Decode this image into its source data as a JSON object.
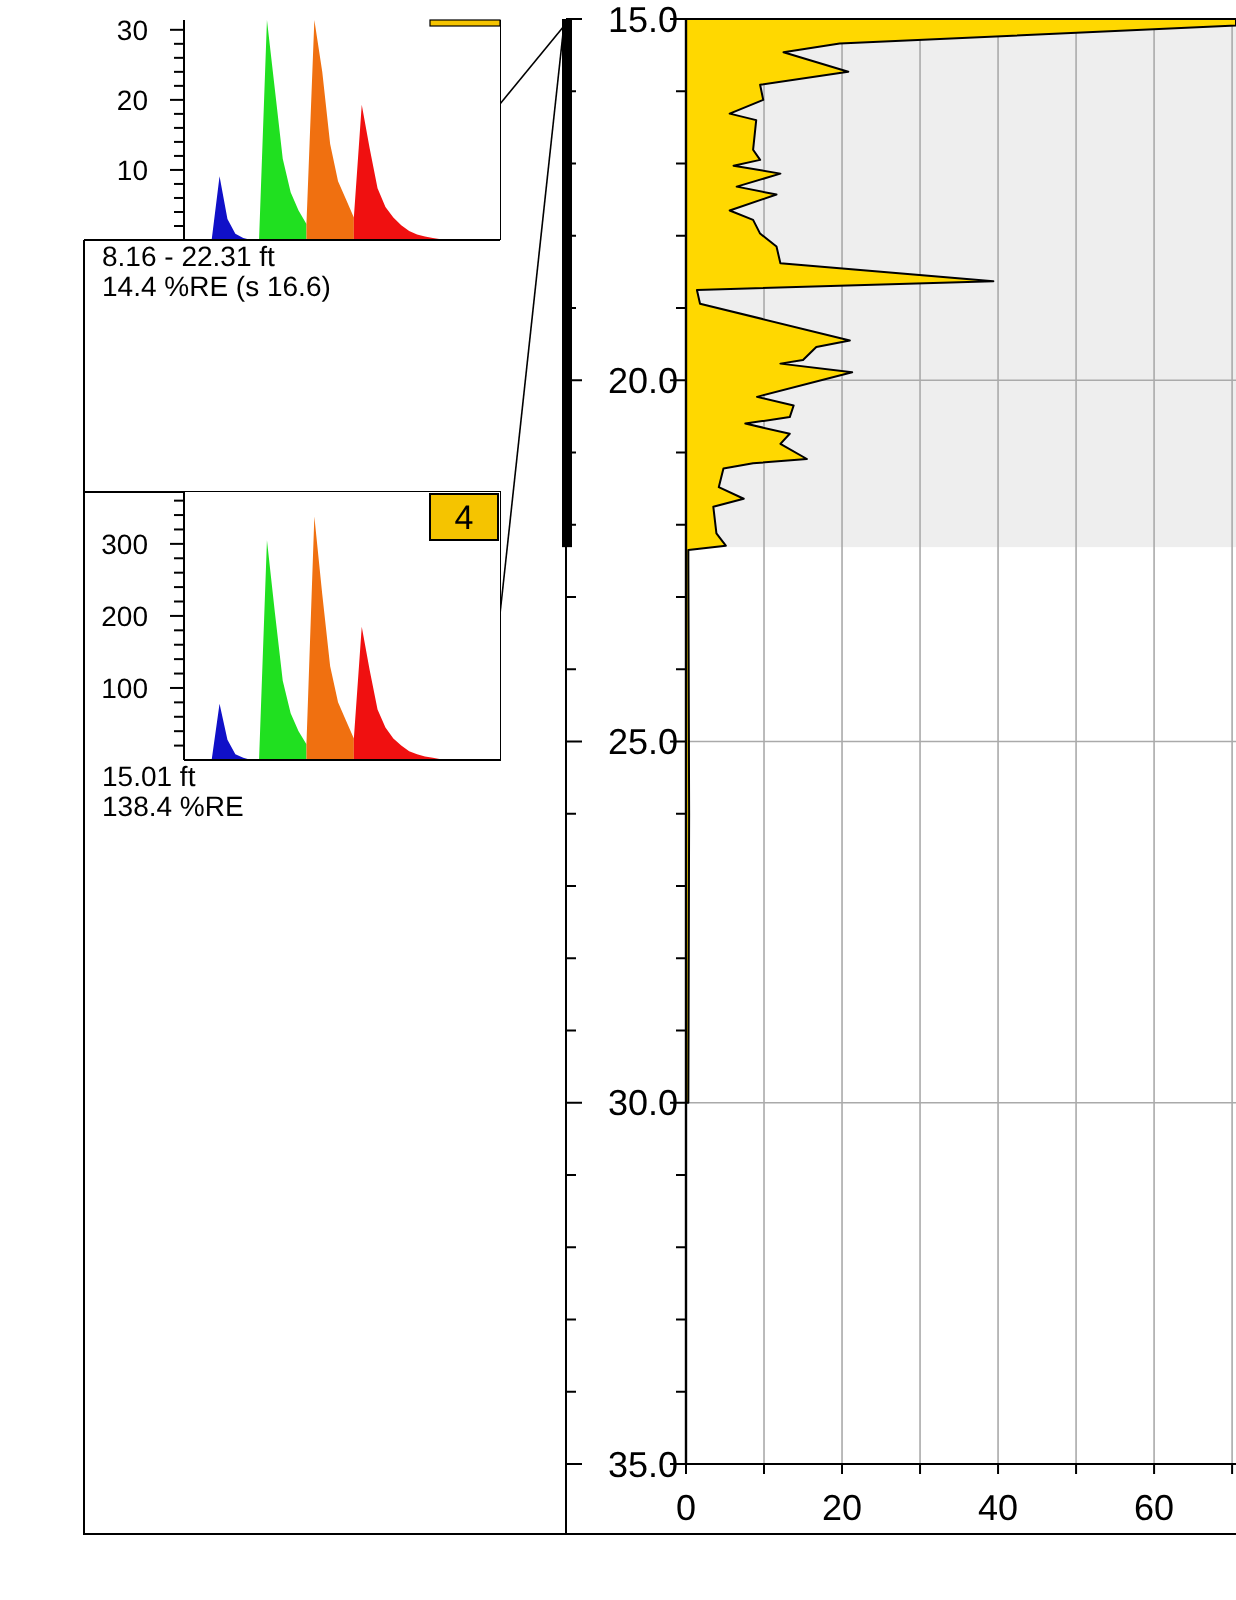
{
  "chart_data": [
    {
      "type": "area",
      "categories": [
        null,
        null,
        null,
        null,
        null,
        null,
        null,
        null,
        null,
        null,
        null,
        null,
        null,
        null,
        null,
        null,
        null,
        null,
        null,
        null,
        null,
        null,
        null,
        null,
        null,
        null,
        null,
        null,
        null,
        null,
        null,
        null,
        null,
        null,
        null,
        null,
        null,
        null,
        null,
        null
      ],
      "ylim": [
        0,
        31.4
      ],
      "tick_labels": "y",
      "yticks": [
        {
          "value": 2,
          "label": null
        },
        {
          "value": 4,
          "label": null
        },
        {
          "value": 6,
          "label": null
        },
        {
          "value": 8,
          "label": null
        },
        10,
        {
          "value": 12,
          "label": null
        },
        {
          "value": 14,
          "label": null
        },
        {
          "value": 16,
          "label": null
        },
        {
          "value": 18,
          "label": null
        },
        20,
        {
          "value": 22,
          "label": null
        },
        {
          "value": 24,
          "label": null
        },
        {
          "value": 26,
          "label": null
        },
        {
          "value": 28,
          "label": null
        },
        30
      ],
      "series": [
        {
          "color": "#1010c8",
          "values": [
            null,
            null,
            null,
            0,
            9.1,
            3,
            0.9,
            0.3,
            0,
            null,
            null,
            null,
            null,
            null,
            null,
            null,
            null,
            null,
            null,
            null,
            null,
            null,
            null,
            null,
            null,
            null,
            null,
            null,
            null,
            null,
            null,
            null,
            null,
            null,
            null,
            null,
            null,
            null,
            null,
            null
          ]
        },
        {
          "color": "#20e020",
          "values": [
            null,
            null,
            null,
            null,
            null,
            null,
            null,
            null,
            null,
            0,
            31.4,
            21.5,
            11.6,
            6.8,
            4.2,
            2.3,
            null,
            null,
            null,
            null,
            null,
            null,
            null,
            null,
            null,
            null,
            null,
            null,
            null,
            null,
            null,
            null,
            null,
            null,
            null,
            null,
            null,
            null,
            null,
            null
          ]
        },
        {
          "color": "#f07010",
          "values": [
            null,
            null,
            null,
            null,
            null,
            null,
            null,
            null,
            null,
            null,
            null,
            null,
            null,
            null,
            null,
            2.3,
            31.4,
            24,
            13.7,
            8.4,
            5.8,
            3.2,
            null,
            null,
            null,
            null,
            null,
            null,
            null,
            null,
            null,
            null,
            null,
            null,
            null,
            null,
            null,
            null,
            null,
            null
          ]
        },
        {
          "color": "#f01010",
          "values": [
            null,
            null,
            null,
            null,
            null,
            null,
            null,
            null,
            null,
            null,
            null,
            null,
            null,
            null,
            null,
            null,
            null,
            null,
            null,
            null,
            null,
            3.2,
            19.3,
            13.1,
            7.4,
            4.7,
            3.2,
            2.1,
            1.3,
            0.8,
            0.5,
            0.3,
            0.1,
            0.1,
            0,
            0,
            0,
            0,
            0,
            0
          ]
        }
      ],
      "annotations": [
        "8.16 - 22.31 ft",
        "14.4 %RE (s 16.6)"
      ]
    },
    {
      "type": "area",
      "title": "4",
      "categories": [
        null,
        null,
        null,
        null,
        null,
        null,
        null,
        null,
        null,
        null,
        null,
        null,
        null,
        null,
        null,
        null,
        null,
        null,
        null,
        null,
        null,
        null,
        null,
        null,
        null,
        null,
        null,
        null,
        null,
        null,
        null,
        null,
        null,
        null,
        null,
        null,
        null,
        null,
        null,
        null
      ],
      "ylim": [
        0,
        372
      ],
      "tick_labels": "y",
      "yticks": [
        {
          "value": 20,
          "label": null
        },
        {
          "value": 40,
          "label": null
        },
        {
          "value": 60,
          "label": null
        },
        {
          "value": 80,
          "label": null
        },
        100,
        {
          "value": 120,
          "label": null
        },
        {
          "value": 140,
          "label": null
        },
        {
          "value": 160,
          "label": null
        },
        {
          "value": 180,
          "label": null
        },
        200,
        {
          "value": 220,
          "label": null
        },
        {
          "value": 240,
          "label": null
        },
        {
          "value": 260,
          "label": null
        },
        {
          "value": 280,
          "label": null
        },
        300,
        {
          "value": 320,
          "label": null
        },
        {
          "value": 340,
          "label": null
        },
        {
          "value": 360,
          "label": null
        }
      ],
      "series": [
        {
          "color": "#1010c8",
          "values": [
            null,
            null,
            null,
            0,
            78,
            28,
            8,
            3,
            0,
            null,
            null,
            null,
            null,
            null,
            null,
            null,
            null,
            null,
            null,
            null,
            null,
            null,
            null,
            null,
            null,
            null,
            null,
            null,
            null,
            null,
            null,
            null,
            null,
            null,
            null,
            null,
            null,
            null,
            null,
            null
          ]
        },
        {
          "color": "#20e020",
          "values": [
            null,
            null,
            null,
            null,
            null,
            null,
            null,
            null,
            null,
            0,
            305,
            205,
            110,
            65,
            40,
            22,
            null,
            null,
            null,
            null,
            null,
            null,
            null,
            null,
            null,
            null,
            null,
            null,
            null,
            null,
            null,
            null,
            null,
            null,
            null,
            null,
            null,
            null,
            null,
            null
          ]
        },
        {
          "color": "#f07010",
          "values": [
            null,
            null,
            null,
            null,
            null,
            null,
            null,
            null,
            null,
            null,
            null,
            null,
            null,
            null,
            null,
            22,
            338,
            230,
            130,
            80,
            55,
            30,
            null,
            null,
            null,
            null,
            null,
            null,
            null,
            null,
            null,
            null,
            null,
            null,
            null,
            null,
            null,
            null,
            null,
            null
          ]
        },
        {
          "color": "#f01010",
          "values": [
            null,
            null,
            null,
            null,
            null,
            null,
            null,
            null,
            null,
            null,
            null,
            null,
            null,
            null,
            null,
            null,
            null,
            null,
            null,
            null,
            null,
            30,
            185,
            125,
            70,
            45,
            30,
            20,
            12,
            8,
            5,
            3,
            1,
            1,
            0,
            0,
            0,
            0,
            0,
            0
          ]
        }
      ],
      "annotations": [
        "15.01 ft",
        "138.4 %RE"
      ]
    },
    {
      "type": "area",
      "orientation": "horizontal",
      "grid": true,
      "xlim": [
        0,
        70.5
      ],
      "ylim": [
        35,
        15
      ],
      "xticks": [
        0,
        {
          "value": 10,
          "label": null
        },
        20,
        {
          "value": 30,
          "label": null
        },
        40,
        {
          "value": 50,
          "label": null
        },
        60,
        {
          "value": 70,
          "label": null
        }
      ],
      "yticks": [
        {
          "value": 15,
          "label": "15.0"
        },
        {
          "value": 16,
          "label": null
        },
        {
          "value": 17,
          "label": null
        },
        {
          "value": 18,
          "label": null
        },
        {
          "value": 19,
          "label": null
        },
        {
          "value": 20,
          "label": "20.0"
        },
        {
          "value": 21,
          "label": null
        },
        {
          "value": 22,
          "label": null
        },
        {
          "value": 23,
          "label": null
        },
        {
          "value": 24,
          "label": null
        },
        {
          "value": 25,
          "label": "25.0"
        },
        {
          "value": 26,
          "label": null
        },
        {
          "value": 27,
          "label": null
        },
        {
          "value": 28,
          "label": null
        },
        {
          "value": 29,
          "label": null
        },
        {
          "value": 30,
          "label": "30.0"
        },
        {
          "value": 31,
          "label": null
        },
        {
          "value": 32,
          "label": null
        },
        {
          "value": 33,
          "label": null
        },
        {
          "value": 34,
          "label": null
        },
        {
          "value": 35,
          "label": "35.0"
        }
      ],
      "bands": [
        {
          "axis": "y",
          "from": 15,
          "to": 22.31,
          "color": "#eeeeee"
        }
      ],
      "series": [
        {
          "color": "#ffd800",
          "x": [
            15.0,
            15.09,
            15.34,
            15.46,
            15.73,
            15.91,
            16.12,
            16.31,
            16.4,
            16.81,
            16.95,
            17.03,
            17.14,
            17.32,
            17.43,
            17.65,
            17.78,
            17.97,
            18.15,
            18.38,
            18.63,
            18.75,
            18.94,
            19.45,
            19.54,
            19.72,
            19.77,
            19.89,
            20.23,
            20.35,
            20.51,
            20.6,
            20.74,
            20.88,
            21.09,
            21.15,
            21.22,
            21.48,
            21.64,
            21.75,
            22.12,
            22.29,
            22.35,
            22.5,
            26.0,
            30.0
          ],
          "values": [
            70.5,
            70.5,
            19.7,
            12.5,
            20.8,
            9.5,
            9.9,
            5.6,
            9.0,
            8.6,
            9.5,
            6.1,
            12.1,
            6.5,
            11.6,
            5.6,
            8.6,
            9.5,
            11.6,
            12.1,
            39.4,
            1.4,
            1.8,
            21.0,
            16.7,
            15.0,
            12.1,
            21.3,
            9.1,
            13.8,
            13.3,
            7.6,
            13.3,
            12.1,
            15.5,
            8.6,
            4.8,
            4.2,
            7.4,
            3.5,
            3.9,
            5.1,
            0.3,
            0.3,
            0.4,
            0.3
          ]
        }
      ]
    }
  ]
}
